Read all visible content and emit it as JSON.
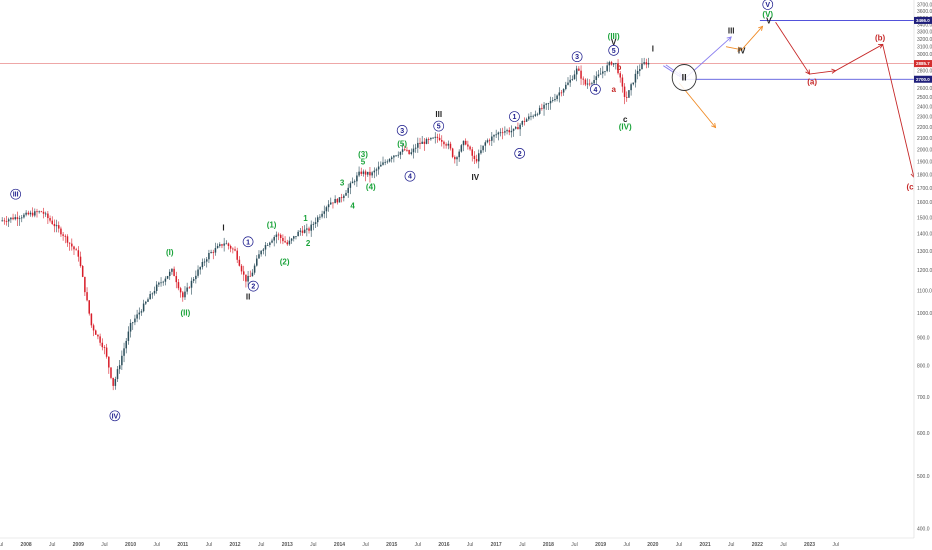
{
  "colors": {
    "background": "#ffffff",
    "up": "#2a4d5a",
    "down": "#d81e2a",
    "navy": "#1c1c8c",
    "green": "#1aa33a",
    "orange": "#f08a24",
    "darkred": "#c62828",
    "blue_line": "#3a3ad6",
    "red_line": "#e57373",
    "lavender": "#8a7ff0",
    "axis_text": "#555555"
  },
  "chart_data": {
    "type": "candlestick",
    "title": "",
    "y_axis": {
      "scale": "log",
      "range": [
        385,
        3780
      ],
      "ticks": [
        400,
        500,
        600,
        700,
        800,
        900,
        1000,
        1100,
        1200,
        1300,
        1400,
        1500,
        1600,
        1700,
        1800,
        1900,
        2000,
        2100,
        2200,
        2300,
        2400,
        2500,
        2600,
        2700,
        2800,
        2900,
        3000,
        3100,
        3200,
        3300,
        3400,
        3500,
        3600,
        3700
      ],
      "tick_labels": [
        "400.0",
        "500.0",
        "600.0",
        "700.0",
        "800.0",
        "900.0",
        "1000.0",
        "1100.0",
        "1200.0",
        "1300.0",
        "1400.0",
        "1500.0",
        "1600.0",
        "1700.0",
        "1800.0",
        "1900.0",
        "2000.0",
        "2100.0",
        "2200.0",
        "2300.0",
        "2400.0",
        "2500.0",
        "2600.0",
        "2700.0",
        "2800.0",
        "2900.0",
        "3000.0",
        "3100.0",
        "3200.0",
        "3300.0",
        "3400.0",
        "3500.0",
        "3600.0",
        "3700.0"
      ]
    },
    "x_axis": {
      "range": [
        2007.0,
        2024.5
      ],
      "ticks": [
        2007.0,
        2007.5,
        2008.0,
        2008.5,
        2009.0,
        2009.5,
        2010.0,
        2010.5,
        2011.0,
        2011.5,
        2012.0,
        2012.5,
        2013.0,
        2013.5,
        2014.0,
        2014.5,
        2015.0,
        2015.5,
        2016.0,
        2016.5,
        2017.0,
        2017.5,
        2018.0,
        2018.5,
        2019.0,
        2019.5,
        2020.0,
        2020.5,
        2021.0,
        2021.5,
        2022.0,
        2022.5,
        2023.0,
        2023.5
      ],
      "tick_labels": [
        "Jul",
        "2008",
        "Jul",
        "2009",
        "Jul",
        "2010",
        "Jul",
        "2011",
        "Jul",
        "2012",
        "Jul",
        "2013",
        "Jul",
        "2014",
        "Jul",
        "2015",
        "Jul",
        "2016",
        "Jul",
        "2017",
        "Jul",
        "2018",
        "Jul",
        "2019",
        "Jul",
        "2020",
        "Jul",
        "2021",
        "Jul",
        "2022",
        "Jul",
        "2023",
        "Jul"
      ]
    },
    "price_line": {
      "value": 2885.7,
      "label": "2885.7",
      "color": "#e57373"
    },
    "horizontal_levels": [
      {
        "value": 3466,
        "label": "3466.0",
        "color": "#3a3ad6"
      },
      {
        "value": 2700,
        "label": "2700.0",
        "color": "#3a3ad6"
      }
    ],
    "anchors": [
      {
        "t": 2007.0,
        "v": 1480
      },
      {
        "t": 2007.8,
        "v": 1540
      },
      {
        "t": 2008.2,
        "v": 1400
      },
      {
        "t": 2008.5,
        "v": 1280
      },
      {
        "t": 2008.75,
        "v": 950
      },
      {
        "t": 2009.0,
        "v": 860
      },
      {
        "t": 2009.17,
        "v": 735
      },
      {
        "t": 2009.5,
        "v": 950
      },
      {
        "t": 2010.0,
        "v": 1120
      },
      {
        "t": 2010.3,
        "v": 1200
      },
      {
        "t": 2010.5,
        "v": 1070
      },
      {
        "t": 2010.75,
        "v": 1180
      },
      {
        "t": 2011.0,
        "v": 1285
      },
      {
        "t": 2011.3,
        "v": 1350
      },
      {
        "t": 2011.5,
        "v": 1300
      },
      {
        "t": 2011.7,
        "v": 1150
      },
      {
        "t": 2011.8,
        "v": 1170
      },
      {
        "t": 2012.0,
        "v": 1310
      },
      {
        "t": 2012.3,
        "v": 1400
      },
      {
        "t": 2012.5,
        "v": 1340
      },
      {
        "t": 2012.75,
        "v": 1420
      },
      {
        "t": 2012.9,
        "v": 1420
      },
      {
        "t": 2013.3,
        "v": 1600
      },
      {
        "t": 2013.5,
        "v": 1620
      },
      {
        "t": 2013.9,
        "v": 1820
      },
      {
        "t": 2014.1,
        "v": 1800
      },
      {
        "t": 2014.5,
        "v": 1950
      },
      {
        "t": 2014.75,
        "v": 2000
      },
      {
        "t": 2014.85,
        "v": 1960
      },
      {
        "t": 2015.0,
        "v": 2050
      },
      {
        "t": 2015.4,
        "v": 2110
      },
      {
        "t": 2015.6,
        "v": 2030
      },
      {
        "t": 2015.7,
        "v": 1920
      },
      {
        "t": 2015.9,
        "v": 2080
      },
      {
        "t": 2016.1,
        "v": 1900
      },
      {
        "t": 2016.3,
        "v": 2070
      },
      {
        "t": 2016.6,
        "v": 2170
      },
      {
        "t": 2016.85,
        "v": 2170
      },
      {
        "t": 2017.0,
        "v": 2250
      },
      {
        "t": 2017.5,
        "v": 2430
      },
      {
        "t": 2017.9,
        "v": 2670
      },
      {
        "t": 2018.05,
        "v": 2820
      },
      {
        "t": 2018.2,
        "v": 2640
      },
      {
        "t": 2018.4,
        "v": 2700
      },
      {
        "t": 2018.7,
        "v": 2900
      },
      {
        "t": 2018.8,
        "v": 2880
      },
      {
        "t": 2018.95,
        "v": 2520
      },
      {
        "t": 2019.0,
        "v": 2500
      },
      {
        "t": 2019.2,
        "v": 2800
      },
      {
        "t": 2019.35,
        "v": 2900
      },
      {
        "t": 2019.45,
        "v": 2885
      }
    ],
    "projections": [
      {
        "color": "#8a7ff0",
        "points": [
          [
            2019.7,
            2860
          ],
          [
            2020.1,
            2700
          ],
          [
            2021.0,
            3230
          ]
        ]
      },
      {
        "color": "#f08a24",
        "points": [
          [
            2020.9,
            3100
          ],
          [
            2021.2,
            3060
          ],
          [
            2021.6,
            3380
          ]
        ]
      },
      {
        "color": "#f08a24",
        "points": [
          [
            2020.0,
            2660
          ],
          [
            2020.7,
            2200
          ]
        ]
      },
      {
        "color": "#c62828",
        "points": [
          [
            2021.85,
            3440
          ],
          [
            2022.5,
            2760
          ],
          [
            2023.0,
            2800
          ],
          [
            2023.9,
            3130
          ],
          [
            2024.5,
            1780
          ]
        ]
      },
      {
        "color": "#8a7ff0",
        "points": [
          [
            2019.75,
            2870
          ],
          [
            2020.05,
            2740
          ]
        ]
      }
    ],
    "ellipse": {
      "t": 2020.1,
      "v": 2720,
      "label": "II"
    },
    "annotations": [
      {
        "text": "III",
        "t": 2007.3,
        "v": 1640,
        "color": "#1c1c8c",
        "circled": true
      },
      {
        "text": "IV",
        "t": 2009.2,
        "v": 640,
        "color": "#1c1c8c",
        "circled": true
      },
      {
        "text": "(I)",
        "t": 2010.25,
        "v": 1280,
        "color": "#1aa33a"
      },
      {
        "text": "(II)",
        "t": 2010.55,
        "v": 990,
        "color": "#1aa33a"
      },
      {
        "text": "I",
        "t": 2011.28,
        "v": 1420,
        "color": "#222222"
      },
      {
        "text": "1",
        "t": 2011.75,
        "v": 1340,
        "color": "#1c1c8c",
        "circled": true
      },
      {
        "text": "2",
        "t": 2011.85,
        "v": 1110,
        "color": "#1c1c8c",
        "circled": true
      },
      {
        "text": "II",
        "t": 2011.75,
        "v": 1060,
        "color": "#222222"
      },
      {
        "text": "(1)",
        "t": 2012.2,
        "v": 1440,
        "color": "#1aa33a"
      },
      {
        "text": "(2)",
        "t": 2012.45,
        "v": 1230,
        "color": "#1aa33a"
      },
      {
        "text": "1",
        "t": 2012.85,
        "v": 1480,
        "color": "#1aa33a"
      },
      {
        "text": "2",
        "t": 2012.9,
        "v": 1330,
        "color": "#1aa33a"
      },
      {
        "text": "3",
        "t": 2013.55,
        "v": 1720,
        "color": "#1aa33a"
      },
      {
        "text": "4",
        "t": 2013.75,
        "v": 1560,
        "color": "#1aa33a"
      },
      {
        "text": "5",
        "t": 2013.95,
        "v": 1880,
        "color": "#1aa33a"
      },
      {
        "text": "(3)",
        "t": 2013.95,
        "v": 1940,
        "color": "#1aa33a"
      },
      {
        "text": "(4)",
        "t": 2014.1,
        "v": 1690,
        "color": "#1aa33a"
      },
      {
        "text": "(5)",
        "t": 2014.7,
        "v": 2030,
        "color": "#1aa33a"
      },
      {
        "text": "3",
        "t": 2014.7,
        "v": 2150,
        "color": "#1c1c8c",
        "circled": true
      },
      {
        "text": "4",
        "t": 2014.85,
        "v": 1770,
        "color": "#1c1c8c",
        "circled": true
      },
      {
        "text": "5",
        "t": 2015.4,
        "v": 2190,
        "color": "#1c1c8c",
        "circled": true
      },
      {
        "text": "III",
        "t": 2015.4,
        "v": 2300,
        "color": "#222222"
      },
      {
        "text": "IV",
        "t": 2016.1,
        "v": 1760,
        "color": "#222222"
      },
      {
        "text": "1",
        "t": 2016.85,
        "v": 2280,
        "color": "#1c1c8c",
        "circled": true
      },
      {
        "text": "2",
        "t": 2016.95,
        "v": 1950,
        "color": "#1c1c8c",
        "circled": true
      },
      {
        "text": "3",
        "t": 2018.05,
        "v": 2940,
        "color": "#1c1c8c",
        "circled": true
      },
      {
        "text": "4",
        "t": 2018.4,
        "v": 2560,
        "color": "#1c1c8c",
        "circled": true
      },
      {
        "text": "5",
        "t": 2018.75,
        "v": 3020,
        "color": "#1c1c8c",
        "circled": true
      },
      {
        "text": "(III)",
        "t": 2018.75,
        "v": 3200,
        "color": "#1aa33a"
      },
      {
        "text": "V",
        "t": 2018.75,
        "v": 3120,
        "color": "#222222"
      },
      {
        "text": "b",
        "t": 2018.85,
        "v": 2810,
        "color": "#c62828"
      },
      {
        "text": "a",
        "t": 2018.75,
        "v": 2560,
        "color": "#c62828"
      },
      {
        "text": "c",
        "t": 2018.97,
        "v": 2250,
        "color": "#222222"
      },
      {
        "text": "(IV)",
        "t": 2018.97,
        "v": 2180,
        "color": "#1aa33a"
      },
      {
        "text": "I",
        "t": 2019.5,
        "v": 3040,
        "color": "#222222"
      },
      {
        "text": "III",
        "t": 2021.0,
        "v": 3280,
        "color": "#222222"
      },
      {
        "text": "IV",
        "t": 2021.2,
        "v": 3010,
        "color": "#222222"
      },
      {
        "text": "V",
        "t": 2021.7,
        "v": 3670,
        "color": "#1c1c8c",
        "circled": true
      },
      {
        "text": "(V)",
        "t": 2021.7,
        "v": 3520,
        "color": "#1aa33a"
      },
      {
        "text": "V",
        "t": 2021.72,
        "v": 3420,
        "color": "#222222"
      },
      {
        "text": "(a)",
        "t": 2022.55,
        "v": 2640,
        "color": "#c62828"
      },
      {
        "text": "(b)",
        "t": 2023.85,
        "v": 3180,
        "color": "#c62828"
      },
      {
        "text": "(c)",
        "t": 2024.45,
        "v": 1690,
        "color": "#c62828"
      }
    ]
  }
}
